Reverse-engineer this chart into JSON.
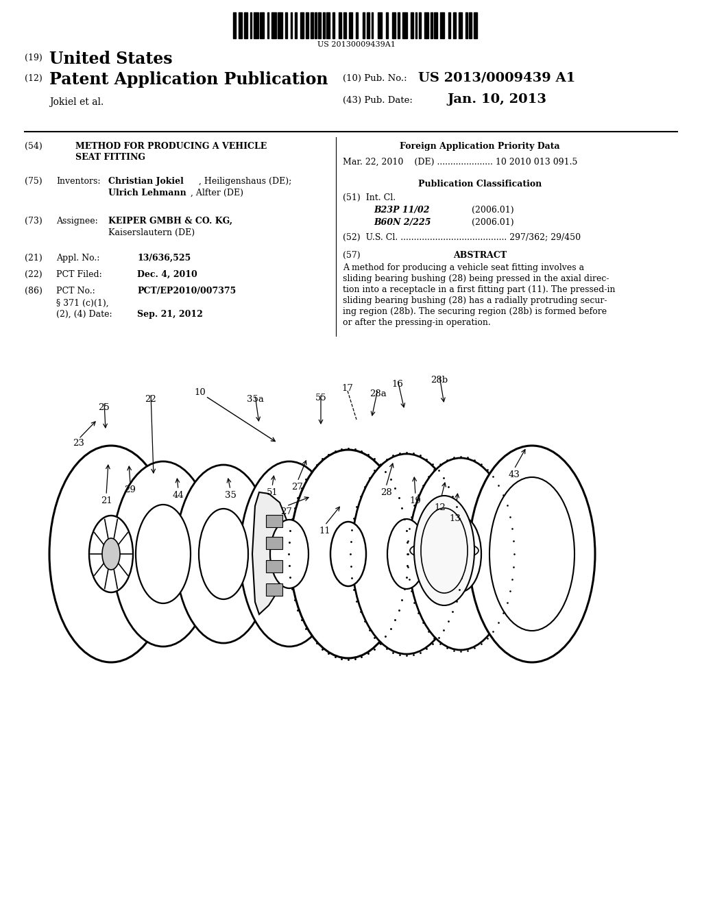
{
  "background_color": "#ffffff",
  "barcode_number": "US 20130009439A1",
  "header_us_label": "(19)",
  "header_us_text": "United States",
  "header_pub_label": "(12)",
  "header_pub_text": "Patent Application Publication",
  "header_author": "Jokiel et al.",
  "header_pub_no_label": "(10) Pub. No.:",
  "header_pub_no": "US 2013/0009439 A1",
  "header_date_label": "(43) Pub. Date:",
  "header_date": "Jan. 10, 2013",
  "field54_tag": "(54)",
  "field54_line1": "METHOD FOR PRODUCING A VEHICLE",
  "field54_line2": "SEAT FITTING",
  "field75_tag": "(75)",
  "field75_label": "Inventors:",
  "field75_name1": "Christian Jokiel",
  "field75_addr1": ", Heiligenshaus (DE);",
  "field75_name2": "Ulrich Lehmann",
  "field75_addr2": ", Alfter (DE)",
  "field73_tag": "(73)",
  "field73_label": "Assignee:",
  "field73_name": "KEIPER GMBH & CO. KG,",
  "field73_addr": "Kaiserslautern (DE)",
  "field21_tag": "(21)",
  "field21_label": "Appl. No.:",
  "field21_value": "13/636,525",
  "field22_tag": "(22)",
  "field22_label": "PCT Filed:",
  "field22_value": "Dec. 4, 2010",
  "field86_tag": "(86)",
  "field86_label": "PCT No.:",
  "field86_value": "PCT/EP2010/007375",
  "field86_371": "§ 371 (c)(1),",
  "field86_date_label": "(2), (4) Date:",
  "field86_date_value": "Sep. 21, 2012",
  "right_foreign_title": "Foreign Application Priority Data",
  "right_foreign_data": "Mar. 22, 2010    (DE) ..................... 10 2010 013 091.5",
  "right_pub_class_title": "Publication Classification",
  "right_int_cl_label": "(51)  Int. Cl.",
  "right_int_cl_1_name": "B23P 11/02",
  "right_int_cl_1_year": "(2006.01)",
  "right_int_cl_2_name": "B60N 2/225",
  "right_int_cl_2_year": "(2006.01)",
  "right_us_cl": "(52)  U.S. Cl. ........................................ 297/362; 29/450",
  "right_abstract_tag": "(57)",
  "right_abstract_title": "ABSTRACT",
  "abstract_lines": [
    "A method for producing a vehicle seat fitting involves a",
    "sliding bearing bushing (28) being pressed in the axial direc-",
    "tion into a receptacle in a first fitting part (11). The pressed-in",
    "sliding bearing bushing (28) has a radially protruding secur-",
    "ing region (28b). The securing region (28b) is formed before",
    "or after the pressing-in operation."
  ]
}
